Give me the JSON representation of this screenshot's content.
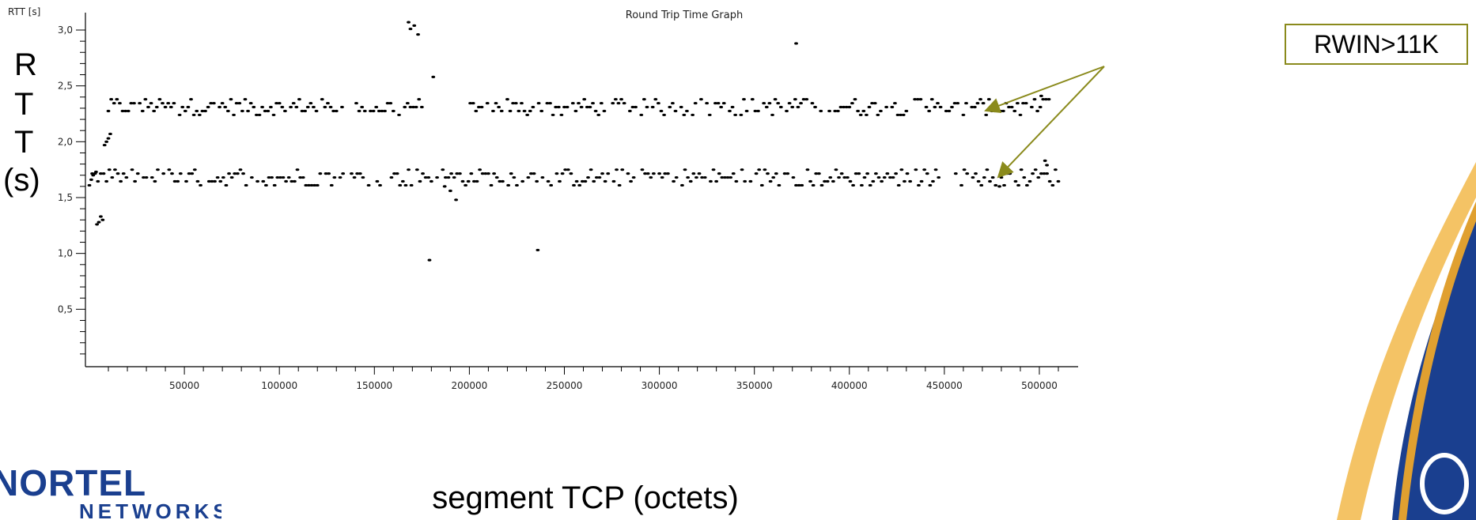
{
  "colors": {
    "points": "#000000",
    "callout_border": "#8a8a1c",
    "arrow": "#8a8a1c",
    "logo": "#1a3f8f",
    "swoosh_orange": "#f0a020",
    "swoosh_blue": "#1a3f8f"
  },
  "icons": [
    "nortel-logo-icon",
    "globe-swoosh-icon"
  ],
  "chart_data": {
    "type": "scatter",
    "title": "Round Trip Time Graph",
    "ylabel": "RTT [s]",
    "xlabel": "segment TCP (octets)",
    "big_ylabel_letters": [
      "R",
      "T",
      "T",
      "(s)"
    ],
    "xlim": [
      0,
      510000
    ],
    "ylim": [
      0,
      3.1
    ],
    "x_ticks": [
      "50000",
      "100000",
      "150000",
      "200000",
      "250000",
      "300000",
      "350000",
      "400000",
      "450000",
      "500000"
    ],
    "y_ticks": [
      "0,5",
      "1,0",
      "1,5",
      "2,0",
      "2,5",
      "3,0"
    ],
    "grid": false,
    "bands": [
      {
        "name": "upper",
        "x_range": [
          10000,
          505000
        ],
        "center": 2.31,
        "spread": 0.07
      },
      {
        "name": "lower",
        "x_range": [
          0,
          510000
        ],
        "center": 1.68,
        "spread": 0.07
      }
    ],
    "points": [
      [
        1000,
        1.66
      ],
      [
        2000,
        1.7
      ],
      [
        3500,
        1.73
      ],
      [
        4000,
        1.26
      ],
      [
        5000,
        1.28
      ],
      [
        6000,
        1.33
      ],
      [
        7000,
        1.3
      ],
      [
        8000,
        1.97
      ],
      [
        9000,
        2.0
      ],
      [
        10000,
        2.03
      ],
      [
        11000,
        2.07
      ],
      [
        168000,
        3.07
      ],
      [
        169000,
        3.01
      ],
      [
        171000,
        3.04
      ],
      [
        173000,
        2.96
      ],
      [
        181000,
        2.58
      ],
      [
        179000,
        0.94
      ],
      [
        236000,
        1.03
      ],
      [
        190000,
        1.56
      ],
      [
        193000,
        1.48
      ],
      [
        187000,
        1.6
      ],
      [
        372000,
        2.88
      ],
      [
        503000,
        1.83
      ],
      [
        504000,
        1.79
      ],
      [
        501000,
        2.41
      ],
      [
        505000,
        2.38
      ],
      [
        479000,
        1.6
      ]
    ],
    "annotation": {
      "text": "RWIN>11K",
      "targets": [
        "upper",
        "lower"
      ]
    }
  },
  "branding": {
    "logo_line1": "NORTEL",
    "logo_line2": "NETWORKS"
  }
}
